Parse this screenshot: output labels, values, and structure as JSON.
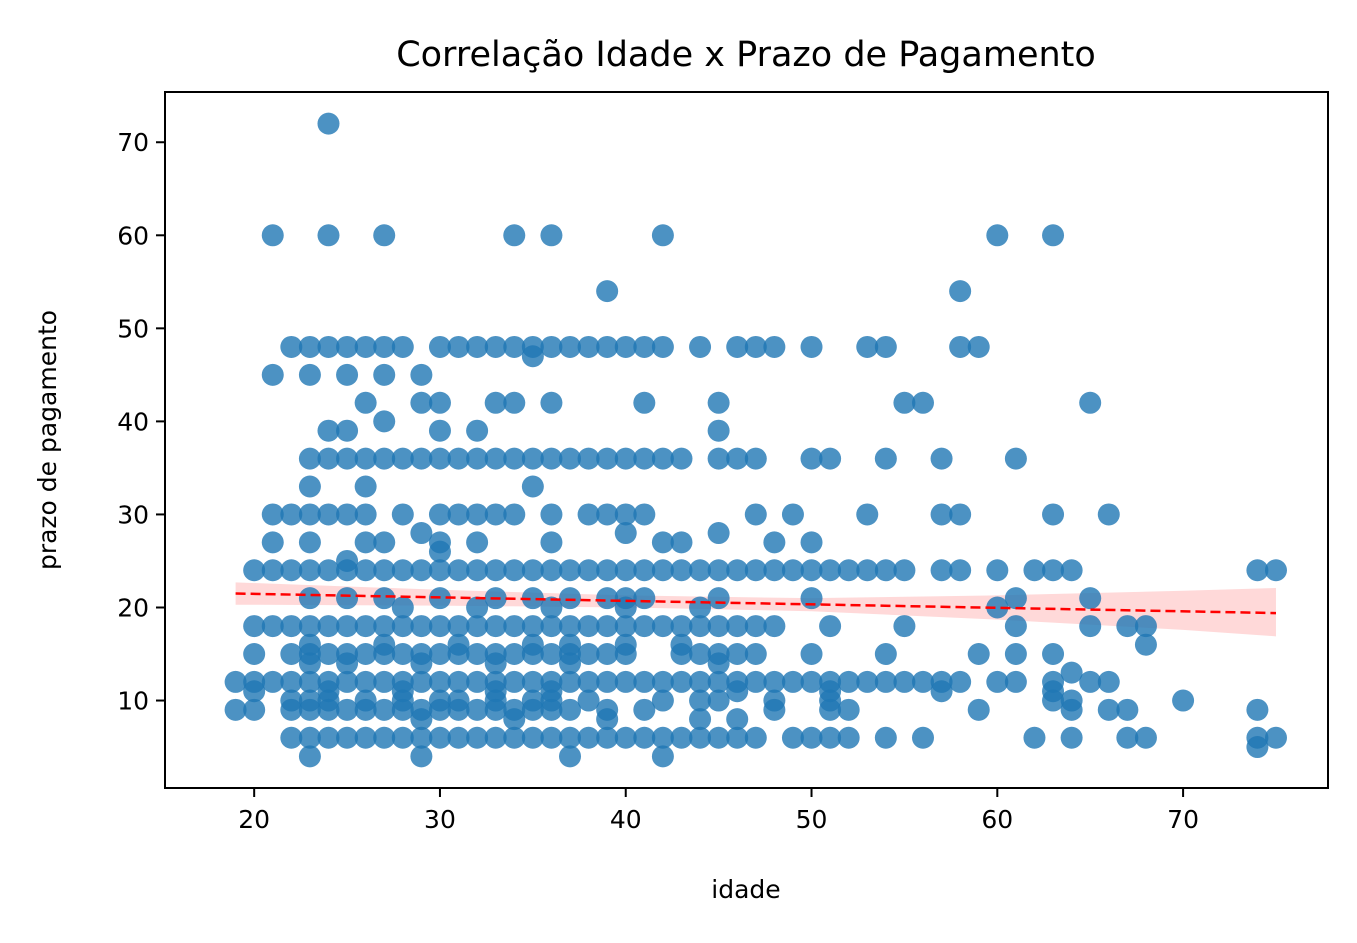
{
  "chart_data": {
    "type": "scatter",
    "title": "Correlação Idade x Prazo de Pagamento",
    "xlabel": "idade",
    "ylabel": "prazo de pagamento",
    "xlim": [
      15.2,
      77.8
    ],
    "ylim": [
      0.6,
      75.4
    ],
    "xticks": [
      20,
      30,
      40,
      50,
      60,
      70
    ],
    "yticks": [
      10,
      20,
      30,
      40,
      50,
      60,
      70
    ],
    "grid": false,
    "point_color": "#1f77b4",
    "regression": {
      "x_range": [
        19,
        75
      ],
      "y_at_start": 21.5,
      "y_at_end": 19.4,
      "line_color": "#ff0000",
      "line_style": "dashed",
      "ci_band_color": "#ff0000",
      "ci_upper": [
        [
          19,
          22.7
        ],
        [
          30,
          21.9
        ],
        [
          40,
          21.3
        ],
        [
          50,
          21.0
        ],
        [
          60,
          21.3
        ],
        [
          70,
          21.8
        ],
        [
          75,
          22.1
        ]
      ],
      "ci_lower": [
        [
          19,
          20.3
        ],
        [
          30,
          20.2
        ],
        [
          40,
          20.0
        ],
        [
          50,
          19.6
        ],
        [
          60,
          18.7
        ],
        [
          70,
          17.6
        ],
        [
          75,
          16.9
        ]
      ]
    },
    "points": [
      [
        24,
        72
      ],
      [
        21,
        60
      ],
      [
        24,
        60
      ],
      [
        27,
        60
      ],
      [
        34,
        60
      ],
      [
        36,
        60
      ],
      [
        42,
        60
      ],
      [
        60,
        60
      ],
      [
        63,
        60
      ],
      [
        39,
        54
      ],
      [
        58,
        54
      ],
      [
        22,
        48
      ],
      [
        23,
        48
      ],
      [
        24,
        48
      ],
      [
        25,
        48
      ],
      [
        26,
        48
      ],
      [
        27,
        48
      ],
      [
        28,
        48
      ],
      [
        30,
        48
      ],
      [
        31,
        48
      ],
      [
        32,
        48
      ],
      [
        33,
        48
      ],
      [
        34,
        48
      ],
      [
        35,
        48
      ],
      [
        36,
        48
      ],
      [
        37,
        48
      ],
      [
        38,
        48
      ],
      [
        39,
        48
      ],
      [
        40,
        48
      ],
      [
        41,
        48
      ],
      [
        42,
        48
      ],
      [
        44,
        48
      ],
      [
        46,
        48
      ],
      [
        47,
        48
      ],
      [
        48,
        48
      ],
      [
        50,
        48
      ],
      [
        53,
        48
      ],
      [
        54,
        48
      ],
      [
        58,
        48
      ],
      [
        59,
        48
      ],
      [
        35,
        47
      ],
      [
        21,
        45
      ],
      [
        23,
        45
      ],
      [
        25,
        45
      ],
      [
        27,
        45
      ],
      [
        29,
        45
      ],
      [
        26,
        42
      ],
      [
        29,
        42
      ],
      [
        30,
        42
      ],
      [
        33,
        42
      ],
      [
        34,
        42
      ],
      [
        36,
        42
      ],
      [
        41,
        42
      ],
      [
        45,
        42
      ],
      [
        55,
        42
      ],
      [
        56,
        42
      ],
      [
        65,
        42
      ],
      [
        27,
        40
      ],
      [
        30,
        39
      ],
      [
        24,
        39
      ],
      [
        25,
        39
      ],
      [
        32,
        39
      ],
      [
        45,
        39
      ],
      [
        23,
        36
      ],
      [
        24,
        36
      ],
      [
        25,
        36
      ],
      [
        26,
        36
      ],
      [
        27,
        36
      ],
      [
        28,
        36
      ],
      [
        29,
        36
      ],
      [
        30,
        36
      ],
      [
        31,
        36
      ],
      [
        32,
        36
      ],
      [
        33,
        36
      ],
      [
        34,
        36
      ],
      [
        35,
        36
      ],
      [
        36,
        36
      ],
      [
        37,
        36
      ],
      [
        38,
        36
      ],
      [
        39,
        36
      ],
      [
        40,
        36
      ],
      [
        41,
        36
      ],
      [
        42,
        36
      ],
      [
        43,
        36
      ],
      [
        45,
        36
      ],
      [
        46,
        36
      ],
      [
        47,
        36
      ],
      [
        50,
        36
      ],
      [
        51,
        36
      ],
      [
        54,
        36
      ],
      [
        57,
        36
      ],
      [
        61,
        36
      ],
      [
        23,
        33
      ],
      [
        26,
        33
      ],
      [
        35,
        33
      ],
      [
        21,
        30
      ],
      [
        22,
        30
      ],
      [
        23,
        30
      ],
      [
        24,
        30
      ],
      [
        25,
        30
      ],
      [
        26,
        30
      ],
      [
        28,
        30
      ],
      [
        30,
        30
      ],
      [
        31,
        30
      ],
      [
        32,
        30
      ],
      [
        33,
        30
      ],
      [
        34,
        30
      ],
      [
        36,
        30
      ],
      [
        38,
        30
      ],
      [
        39,
        30
      ],
      [
        40,
        30
      ],
      [
        41,
        30
      ],
      [
        47,
        30
      ],
      [
        49,
        30
      ],
      [
        53,
        30
      ],
      [
        57,
        30
      ],
      [
        58,
        30
      ],
      [
        63,
        30
      ],
      [
        66,
        30
      ],
      [
        29,
        28
      ],
      [
        40,
        28
      ],
      [
        45,
        28
      ],
      [
        21,
        27
      ],
      [
        23,
        27
      ],
      [
        26,
        27
      ],
      [
        27,
        27
      ],
      [
        30,
        27
      ],
      [
        32,
        27
      ],
      [
        36,
        27
      ],
      [
        42,
        27
      ],
      [
        43,
        27
      ],
      [
        48,
        27
      ],
      [
        50,
        27
      ],
      [
        30,
        26
      ],
      [
        25,
        25
      ],
      [
        20,
        24
      ],
      [
        21,
        24
      ],
      [
        22,
        24
      ],
      [
        23,
        24
      ],
      [
        24,
        24
      ],
      [
        25,
        24
      ],
      [
        26,
        24
      ],
      [
        27,
        24
      ],
      [
        28,
        24
      ],
      [
        29,
        24
      ],
      [
        30,
        24
      ],
      [
        31,
        24
      ],
      [
        32,
        24
      ],
      [
        33,
        24
      ],
      [
        34,
        24
      ],
      [
        35,
        24
      ],
      [
        36,
        24
      ],
      [
        37,
        24
      ],
      [
        38,
        24
      ],
      [
        39,
        24
      ],
      [
        40,
        24
      ],
      [
        41,
        24
      ],
      [
        42,
        24
      ],
      [
        43,
        24
      ],
      [
        44,
        24
      ],
      [
        45,
        24
      ],
      [
        46,
        24
      ],
      [
        47,
        24
      ],
      [
        48,
        24
      ],
      [
        49,
        24
      ],
      [
        50,
        24
      ],
      [
        51,
        24
      ],
      [
        52,
        24
      ],
      [
        53,
        24
      ],
      [
        54,
        24
      ],
      [
        55,
        24
      ],
      [
        57,
        24
      ],
      [
        58,
        24
      ],
      [
        60,
        24
      ],
      [
        62,
        24
      ],
      [
        63,
        24
      ],
      [
        64,
        24
      ],
      [
        74,
        24
      ],
      [
        75,
        24
      ],
      [
        23,
        21
      ],
      [
        25,
        21
      ],
      [
        27,
        21
      ],
      [
        30,
        21
      ],
      [
        33,
        21
      ],
      [
        35,
        21
      ],
      [
        37,
        21
      ],
      [
        39,
        21
      ],
      [
        40,
        21
      ],
      [
        41,
        21
      ],
      [
        45,
        21
      ],
      [
        50,
        21
      ],
      [
        61,
        21
      ],
      [
        65,
        21
      ],
      [
        28,
        20
      ],
      [
        32,
        20
      ],
      [
        36,
        20
      ],
      [
        40,
        20
      ],
      [
        44,
        20
      ],
      [
        60,
        20
      ],
      [
        20,
        18
      ],
      [
        21,
        18
      ],
      [
        22,
        18
      ],
      [
        23,
        18
      ],
      [
        24,
        18
      ],
      [
        25,
        18
      ],
      [
        26,
        18
      ],
      [
        27,
        18
      ],
      [
        28,
        18
      ],
      [
        29,
        18
      ],
      [
        30,
        18
      ],
      [
        31,
        18
      ],
      [
        32,
        18
      ],
      [
        33,
        18
      ],
      [
        34,
        18
      ],
      [
        35,
        18
      ],
      [
        36,
        18
      ],
      [
        37,
        18
      ],
      [
        38,
        18
      ],
      [
        39,
        18
      ],
      [
        40,
        18
      ],
      [
        41,
        18
      ],
      [
        42,
        18
      ],
      [
        43,
        18
      ],
      [
        44,
        18
      ],
      [
        45,
        18
      ],
      [
        46,
        18
      ],
      [
        47,
        18
      ],
      [
        48,
        18
      ],
      [
        51,
        18
      ],
      [
        55,
        18
      ],
      [
        61,
        18
      ],
      [
        65,
        18
      ],
      [
        67,
        18
      ],
      [
        68,
        18
      ],
      [
        23,
        16
      ],
      [
        27,
        16
      ],
      [
        31,
        16
      ],
      [
        35,
        16
      ],
      [
        37,
        16
      ],
      [
        40,
        16
      ],
      [
        43,
        16
      ],
      [
        68,
        16
      ],
      [
        20,
        15
      ],
      [
        22,
        15
      ],
      [
        23,
        15
      ],
      [
        24,
        15
      ],
      [
        25,
        15
      ],
      [
        26,
        15
      ],
      [
        27,
        15
      ],
      [
        28,
        15
      ],
      [
        29,
        15
      ],
      [
        30,
        15
      ],
      [
        31,
        15
      ],
      [
        32,
        15
      ],
      [
        33,
        15
      ],
      [
        34,
        15
      ],
      [
        35,
        15
      ],
      [
        36,
        15
      ],
      [
        37,
        15
      ],
      [
        38,
        15
      ],
      [
        39,
        15
      ],
      [
        40,
        15
      ],
      [
        43,
        15
      ],
      [
        44,
        15
      ],
      [
        45,
        15
      ],
      [
        46,
        15
      ],
      [
        47,
        15
      ],
      [
        50,
        15
      ],
      [
        54,
        15
      ],
      [
        59,
        15
      ],
      [
        61,
        15
      ],
      [
        63,
        15
      ],
      [
        23,
        14
      ],
      [
        25,
        14
      ],
      [
        29,
        14
      ],
      [
        33,
        14
      ],
      [
        37,
        14
      ],
      [
        45,
        14
      ],
      [
        64,
        13
      ],
      [
        19,
        12
      ],
      [
        20,
        12
      ],
      [
        21,
        12
      ],
      [
        22,
        12
      ],
      [
        23,
        12
      ],
      [
        24,
        12
      ],
      [
        25,
        12
      ],
      [
        26,
        12
      ],
      [
        27,
        12
      ],
      [
        28,
        12
      ],
      [
        29,
        12
      ],
      [
        30,
        12
      ],
      [
        31,
        12
      ],
      [
        32,
        12
      ],
      [
        33,
        12
      ],
      [
        34,
        12
      ],
      [
        35,
        12
      ],
      [
        36,
        12
      ],
      [
        37,
        12
      ],
      [
        38,
        12
      ],
      [
        39,
        12
      ],
      [
        40,
        12
      ],
      [
        41,
        12
      ],
      [
        42,
        12
      ],
      [
        43,
        12
      ],
      [
        44,
        12
      ],
      [
        45,
        12
      ],
      [
        46,
        12
      ],
      [
        47,
        12
      ],
      [
        48,
        12
      ],
      [
        49,
        12
      ],
      [
        50,
        12
      ],
      [
        51,
        12
      ],
      [
        52,
        12
      ],
      [
        53,
        12
      ],
      [
        54,
        12
      ],
      [
        55,
        12
      ],
      [
        56,
        12
      ],
      [
        57,
        12
      ],
      [
        58,
        12
      ],
      [
        60,
        12
      ],
      [
        61,
        12
      ],
      [
        63,
        12
      ],
      [
        65,
        12
      ],
      [
        66,
        12
      ],
      [
        20,
        11
      ],
      [
        24,
        11
      ],
      [
        28,
        11
      ],
      [
        33,
        11
      ],
      [
        36,
        11
      ],
      [
        46,
        11
      ],
      [
        51,
        11
      ],
      [
        57,
        11
      ],
      [
        63,
        11
      ],
      [
        22,
        10
      ],
      [
        23,
        10
      ],
      [
        24,
        10
      ],
      [
        26,
        10
      ],
      [
        28,
        10
      ],
      [
        30,
        10
      ],
      [
        31,
        10
      ],
      [
        33,
        10
      ],
      [
        35,
        10
      ],
      [
        36,
        10
      ],
      [
        38,
        10
      ],
      [
        42,
        10
      ],
      [
        44,
        10
      ],
      [
        45,
        10
      ],
      [
        48,
        10
      ],
      [
        51,
        10
      ],
      [
        63,
        10
      ],
      [
        64,
        10
      ],
      [
        70,
        10
      ],
      [
        19,
        9
      ],
      [
        20,
        9
      ],
      [
        22,
        9
      ],
      [
        23,
        9
      ],
      [
        24,
        9
      ],
      [
        25,
        9
      ],
      [
        26,
        9
      ],
      [
        27,
        9
      ],
      [
        28,
        9
      ],
      [
        29,
        9
      ],
      [
        30,
        9
      ],
      [
        31,
        9
      ],
      [
        32,
        9
      ],
      [
        33,
        9
      ],
      [
        34,
        9
      ],
      [
        35,
        9
      ],
      [
        36,
        9
      ],
      [
        37,
        9
      ],
      [
        39,
        9
      ],
      [
        41,
        9
      ],
      [
        48,
        9
      ],
      [
        51,
        9
      ],
      [
        52,
        9
      ],
      [
        59,
        9
      ],
      [
        64,
        9
      ],
      [
        66,
        9
      ],
      [
        67,
        9
      ],
      [
        74,
        9
      ],
      [
        29,
        8
      ],
      [
        34,
        8
      ],
      [
        39,
        8
      ],
      [
        44,
        8
      ],
      [
        46,
        8
      ],
      [
        22,
        6
      ],
      [
        23,
        6
      ],
      [
        24,
        6
      ],
      [
        25,
        6
      ],
      [
        26,
        6
      ],
      [
        27,
        6
      ],
      [
        28,
        6
      ],
      [
        29,
        6
      ],
      [
        30,
        6
      ],
      [
        31,
        6
      ],
      [
        32,
        6
      ],
      [
        33,
        6
      ],
      [
        34,
        6
      ],
      [
        35,
        6
      ],
      [
        36,
        6
      ],
      [
        37,
        6
      ],
      [
        38,
        6
      ],
      [
        39,
        6
      ],
      [
        40,
        6
      ],
      [
        41,
        6
      ],
      [
        42,
        6
      ],
      [
        43,
        6
      ],
      [
        44,
        6
      ],
      [
        45,
        6
      ],
      [
        46,
        6
      ],
      [
        47,
        6
      ],
      [
        49,
        6
      ],
      [
        50,
        6
      ],
      [
        51,
        6
      ],
      [
        52,
        6
      ],
      [
        54,
        6
      ],
      [
        56,
        6
      ],
      [
        62,
        6
      ],
      [
        64,
        6
      ],
      [
        67,
        6
      ],
      [
        68,
        6
      ],
      [
        74,
        6
      ],
      [
        75,
        6
      ],
      [
        74,
        5
      ],
      [
        23,
        4
      ],
      [
        29,
        4
      ],
      [
        37,
        4
      ],
      [
        42,
        4
      ]
    ]
  }
}
